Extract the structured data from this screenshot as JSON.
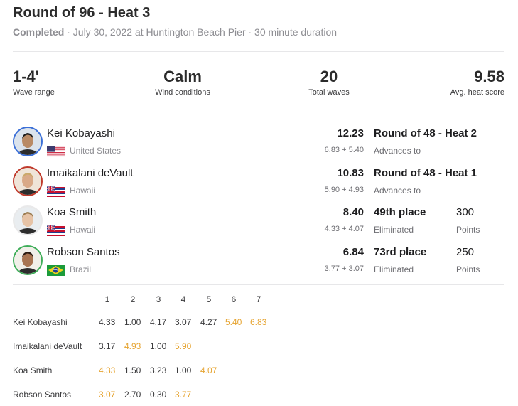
{
  "heat": {
    "title": "Round of 96 - Heat 3",
    "status": "Completed",
    "details": " · July 30, 2022 at Huntington Beach Pier · 30 minute duration"
  },
  "stats": [
    {
      "value": "1-4'",
      "label": "Wave range"
    },
    {
      "value": "Calm",
      "label": "Wind conditions"
    },
    {
      "value": "20",
      "label": "Total waves"
    },
    {
      "value": "9.58",
      "label": "Avg. heat score"
    }
  ],
  "colors": {
    "counted_wave": "#e6a533",
    "accent_gold": "#c9a23a",
    "accent_red": "#c0392b",
    "accent_green": "#3fae5a"
  },
  "surfers": [
    {
      "name": "Kei Kobayashi",
      "country": "United States",
      "flag": "us-flag-icon",
      "total": "12.23",
      "breakdown": "6.83 + 5.40",
      "result": "Round of 48 - Heat 2",
      "result_sub": "Advances to",
      "points": "",
      "points_label": "",
      "ring_color": "#3a6fd8"
    },
    {
      "name": "Imaikalani deVault",
      "country": "Hawaii",
      "flag": "hawaii-flag-icon",
      "total": "10.83",
      "breakdown": "5.90 + 4.93",
      "result": "Round of 48 - Heat 1",
      "result_sub": "Advances to",
      "points": "",
      "points_label": "",
      "ring_color": "#c0392b"
    },
    {
      "name": "Koa Smith",
      "country": "Hawaii",
      "flag": "hawaii-flag-icon",
      "total": "8.40",
      "breakdown": "4.33 + 4.07",
      "result": "49th place",
      "result_sub": "Eliminated",
      "points": "300",
      "points_label": "Points",
      "ring_color": "#e9e9ea"
    },
    {
      "name": "Robson Santos",
      "country": "Brazil",
      "flag": "brazil-flag-icon",
      "total": "6.84",
      "breakdown": "3.77 + 3.07",
      "result": "73rd place",
      "result_sub": "Eliminated",
      "points": "250",
      "points_label": "Points",
      "ring_color": "#3fae5a"
    }
  ],
  "waves": {
    "headers": [
      "1",
      "2",
      "3",
      "4",
      "5",
      "6",
      "7"
    ],
    "rows": [
      {
        "name": "Kei Kobayashi",
        "scores": [
          {
            "v": "4.33",
            "counted": false
          },
          {
            "v": "1.00",
            "counted": false
          },
          {
            "v": "4.17",
            "counted": false
          },
          {
            "v": "3.07",
            "counted": false
          },
          {
            "v": "4.27",
            "counted": false
          },
          {
            "v": "5.40",
            "counted": true
          },
          {
            "v": "6.83",
            "counted": true
          }
        ]
      },
      {
        "name": "Imaikalani deVault",
        "scores": [
          {
            "v": "3.17",
            "counted": false
          },
          {
            "v": "4.93",
            "counted": true
          },
          {
            "v": "1.00",
            "counted": false
          },
          {
            "v": "5.90",
            "counted": true
          }
        ]
      },
      {
        "name": "Koa Smith",
        "scores": [
          {
            "v": "4.33",
            "counted": true
          },
          {
            "v": "1.50",
            "counted": false
          },
          {
            "v": "3.23",
            "counted": false
          },
          {
            "v": "1.00",
            "counted": false
          },
          {
            "v": "4.07",
            "counted": true
          }
        ]
      },
      {
        "name": "Robson Santos",
        "scores": [
          {
            "v": "3.07",
            "counted": true
          },
          {
            "v": "2.70",
            "counted": false
          },
          {
            "v": "0.30",
            "counted": false
          },
          {
            "v": "3.77",
            "counted": true
          }
        ]
      }
    ]
  }
}
